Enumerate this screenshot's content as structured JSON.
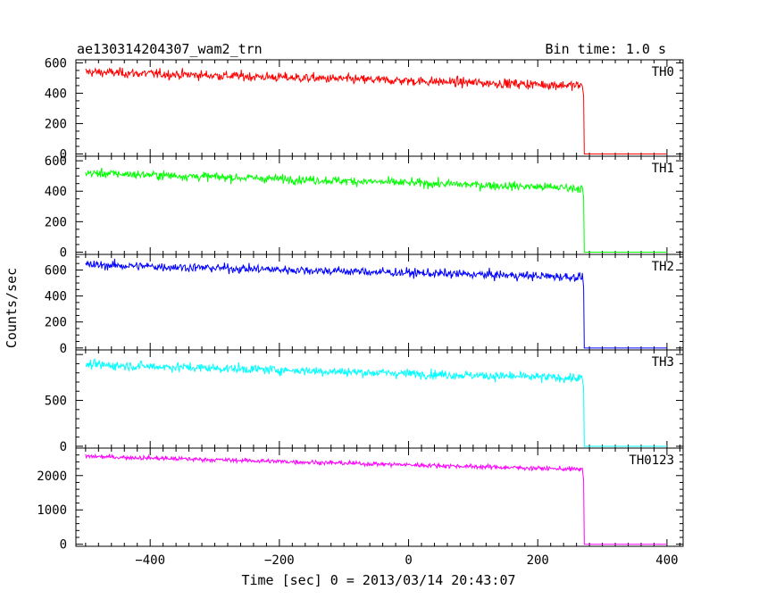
{
  "chart_data": {
    "type": "line",
    "title": "ae130314204307_wam2_trn",
    "bin_time_label": "Bin time: 1.0 s",
    "xlabel": "Time [sec] 0 = 2013/03/14 20:43:07",
    "ylabel": "Counts/sec",
    "xlim": [
      -515,
      425
    ],
    "x_ticks": [
      -400,
      -200,
      0,
      200,
      400
    ],
    "x_tick_labels": [
      "−400",
      "−200",
      "0",
      "200",
      "400"
    ],
    "step_time": 272,
    "grid": false,
    "panels": [
      {
        "name": "TH0",
        "color": "#ff0000",
        "ylim": [
          -15,
          620
        ],
        "y_ticks": [
          0,
          200,
          400,
          600
        ],
        "y_tick_labels": [
          "0",
          "200",
          "400",
          "600"
        ],
        "start_level": 540,
        "end_level": 450,
        "noise": 22,
        "after_level": 0,
        "x": [
          -500,
          -400,
          -300,
          -200,
          -100,
          0,
          100,
          200,
          268,
          272,
          400
        ],
        "y": [
          540,
          528,
          516,
          505,
          494,
          482,
          471,
          460,
          450,
          0,
          0
        ]
      },
      {
        "name": "TH1",
        "color": "#00ff00",
        "ylim": [
          -15,
          630
        ],
        "y_ticks": [
          0,
          200,
          400,
          600
        ],
        "y_tick_labels": [
          "0",
          "200",
          "400",
          "600"
        ],
        "start_level": 520,
        "end_level": 420,
        "noise": 20,
        "after_level": 0,
        "x": [
          -500,
          -400,
          -300,
          -200,
          -100,
          0,
          100,
          200,
          268,
          272,
          400
        ],
        "y": [
          520,
          508,
          495,
          482,
          469,
          457,
          444,
          431,
          420,
          0,
          0
        ]
      },
      {
        "name": "TH2",
        "color": "#0000ff",
        "ylim": [
          -15,
          720
        ],
        "y_ticks": [
          0,
          200,
          400,
          600
        ],
        "y_tick_labels": [
          "0",
          "200",
          "400",
          "600"
        ],
        "start_level": 640,
        "end_level": 545,
        "noise": 24,
        "after_level": 0,
        "x": [
          -500,
          -400,
          -300,
          -200,
          -100,
          0,
          100,
          200,
          268,
          272,
          400
        ],
        "y": [
          640,
          628,
          616,
          603,
          591,
          579,
          567,
          554,
          545,
          0,
          0
        ]
      },
      {
        "name": "TH3",
        "color": "#00ffff",
        "ylim": [
          -20,
          1050
        ],
        "y_ticks": [
          0,
          500
        ],
        "y_tick_labels": [
          "0",
          "500"
        ],
        "start_level": 890,
        "end_level": 740,
        "noise": 35,
        "after_level": 0,
        "x": [
          -500,
          -400,
          -300,
          -200,
          -100,
          0,
          100,
          200,
          268,
          272,
          400
        ],
        "y": [
          890,
          871,
          852,
          832,
          813,
          794,
          774,
          755,
          740,
          0,
          0
        ]
      },
      {
        "name": "TH0123",
        "color": "#ff00ff",
        "ylim": [
          -60,
          2800
        ],
        "y_ticks": [
          0,
          1000,
          2000
        ],
        "y_tick_labels": [
          "0",
          "1000",
          "2000"
        ],
        "start_level": 2560,
        "end_level": 2180,
        "noise": 45,
        "after_level": 0,
        "x": [
          -500,
          -400,
          -300,
          -200,
          -100,
          0,
          100,
          200,
          268,
          272,
          400
        ],
        "y": [
          2560,
          2511,
          2462,
          2413,
          2364,
          2314,
          2265,
          2216,
          2180,
          0,
          0
        ]
      }
    ]
  }
}
